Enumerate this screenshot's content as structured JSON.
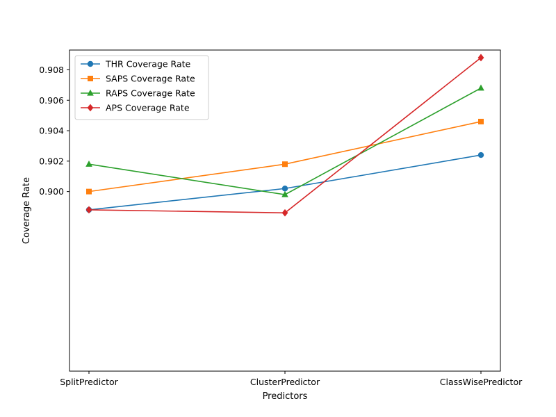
{
  "chart_data": {
    "type": "line",
    "title": "",
    "xlabel": "Predictors",
    "ylabel": "Coverage Rate",
    "categories": [
      "SplitPredictor",
      "ClusterPredictor",
      "ClassWisePredictor"
    ],
    "ylim": [
      0.8882,
      0.9093
    ],
    "yticks": [
      "0.900",
      "0.902",
      "0.904",
      "0.906",
      "0.908"
    ],
    "ytick_values": [
      0.9,
      0.902,
      0.904,
      0.906,
      0.908
    ],
    "grid": false,
    "legend_position": "top-left",
    "series": [
      {
        "name": "THR Coverage Rate",
        "values": [
          0.8988,
          0.9002,
          0.9024
        ],
        "color": "#1f77b4",
        "marker": "circle"
      },
      {
        "name": "SAPS Coverage Rate",
        "values": [
          0.9,
          0.9018,
          0.9046
        ],
        "color": "#ff7f0e",
        "marker": "square"
      },
      {
        "name": "RAPS Coverage Rate",
        "values": [
          0.9018,
          0.8998,
          0.9068
        ],
        "color": "#2ca02c",
        "marker": "triangle"
      },
      {
        "name": "APS Coverage Rate",
        "values": [
          0.8988,
          0.8986,
          0.9088
        ],
        "color": "#d62728",
        "marker": "diamond"
      }
    ]
  }
}
